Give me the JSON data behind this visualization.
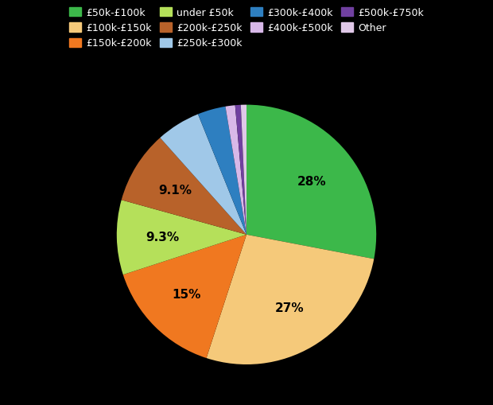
{
  "labels": [
    "£50k-£100k",
    "£100k-£150k",
    "£150k-£200k",
    "under £50k",
    "£200k-£250k",
    "£250k-£300k",
    "£300k-£400k",
    "£400k-£500k",
    "£500k-£750k",
    "Other"
  ],
  "values": [
    28,
    27,
    15,
    9.3,
    9.1,
    5.5,
    3.5,
    1.2,
    0.7,
    0.7
  ],
  "colors": [
    "#3cb84a",
    "#f5c97a",
    "#f07820",
    "#b5e05a",
    "#b8622a",
    "#a0c8e8",
    "#2e7fc0",
    "#d8b8e8",
    "#7040a0",
    "#e0c8e8"
  ],
  "autopct_labels": [
    "28%",
    "27%",
    "15%",
    "9.3%",
    "9.1%",
    "",
    "",
    "",
    "",
    ""
  ],
  "autopct_labels_show": [
    true,
    true,
    true,
    true,
    true,
    false,
    false,
    false,
    false,
    false
  ],
  "background_color": "#000000",
  "text_color": "#000000",
  "legend_ncol": 4,
  "figsize": [
    6.2,
    5.1
  ],
  "dpi": 100
}
